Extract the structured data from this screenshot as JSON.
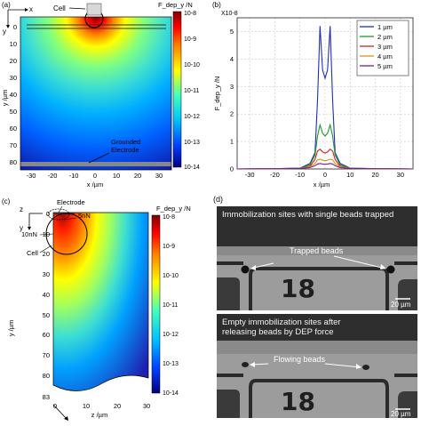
{
  "panel_a": {
    "label": "(a)",
    "axes": {
      "x": "x",
      "y": "y"
    },
    "cell_label": "Cell",
    "colorbar_title": "F_dep_y /N",
    "colorbar_ticks": [
      "10-8",
      "10-9",
      "10-10",
      "10-11",
      "10-12",
      "10-13",
      "10-14"
    ],
    "y_ticks": [
      "0",
      "10",
      "20",
      "30",
      "40",
      "50",
      "60",
      "70",
      "80"
    ],
    "x_ticks": [
      "-30",
      "-20",
      "-10",
      "0",
      "10",
      "20",
      "30"
    ],
    "ylabel": "y /µm",
    "xlabel": "x /µm",
    "grounded_label": "Grounded\nElectrode",
    "colormap": [
      "#000080",
      "#0040ff",
      "#00c0ff",
      "#40ffbf",
      "#ffff00",
      "#ff8000",
      "#ff0000",
      "#800000"
    ]
  },
  "panel_b": {
    "label": "(b)",
    "ylabel": "F_dep_y /N",
    "xlabel": "x /µm",
    "exponent": "X10-8",
    "y_ticks": [
      "0",
      "1",
      "2",
      "3",
      "4",
      "5"
    ],
    "x_ticks": [
      "-30",
      "-20",
      "-10",
      "0",
      "10",
      "20",
      "30"
    ],
    "chart_data": {
      "type": "line",
      "xlim": [
        -35,
        35
      ],
      "ylim": [
        0,
        5.5
      ],
      "grid": true,
      "legend": "top-right",
      "x": [
        -35,
        -20,
        -10,
        -6,
        -4,
        -3,
        -2,
        -1,
        0,
        1,
        2,
        3,
        4,
        6,
        10,
        20,
        35
      ],
      "series": [
        {
          "name": "1 µm",
          "color": "#1f2fb8",
          "values": [
            0,
            0.01,
            0.03,
            0.2,
            0.6,
            2.5,
            5.2,
            3.6,
            3.3,
            3.6,
            5.2,
            2.5,
            0.6,
            0.2,
            0.03,
            0.01,
            0
          ]
        },
        {
          "name": "2 µm",
          "color": "#1a9a2a",
          "values": [
            0,
            0.01,
            0.03,
            0.15,
            0.5,
            1.2,
            1.6,
            1.3,
            1.2,
            1.3,
            1.6,
            1.2,
            0.5,
            0.15,
            0.03,
            0.01,
            0
          ]
        },
        {
          "name": "3 µm",
          "color": "#d42020",
          "values": [
            0,
            0.01,
            0.02,
            0.1,
            0.35,
            0.65,
            0.72,
            0.62,
            0.58,
            0.62,
            0.72,
            0.65,
            0.35,
            0.1,
            0.02,
            0.01,
            0
          ]
        },
        {
          "name": "4 µm",
          "color": "#e09010",
          "values": [
            0,
            0.01,
            0.02,
            0.08,
            0.2,
            0.33,
            0.36,
            0.32,
            0.3,
            0.32,
            0.36,
            0.33,
            0.2,
            0.08,
            0.02,
            0.01,
            0
          ]
        },
        {
          "name": "5 µm",
          "color": "#7a1f8a",
          "values": [
            0,
            0.01,
            0.02,
            0.05,
            0.12,
            0.18,
            0.2,
            0.18,
            0.17,
            0.18,
            0.2,
            0.18,
            0.12,
            0.05,
            0.02,
            0.01,
            0
          ]
        }
      ]
    }
  },
  "panel_c": {
    "label": "(c)",
    "axes": {
      "z": "z",
      "y": "y"
    },
    "electrode_label": "Electrode",
    "force_small": "5nN",
    "force_large": "10nN",
    "cell_label": "Cell",
    "colorbar_title": "F_dep_y /N",
    "colorbar_ticks": [
      "10-8",
      "10-9",
      "10-10",
      "10-11",
      "10-12",
      "10-13",
      "10-14"
    ],
    "y_ticks": [
      "0",
      "10",
      "20",
      "30",
      "40",
      "50",
      "60",
      "70",
      "80",
      "83"
    ],
    "x_ticks": [
      "0",
      "10",
      "20",
      "30"
    ],
    "ylabel": "y /µm",
    "xlabel": "z /µm"
  },
  "panel_d": {
    "label": "(d)",
    "top_caption": "Immobilization sites with single beads trapped",
    "top_annotation": "Trapped beads",
    "bottom_caption": "Empty immobilization sites after\nreleasing beads by DEP force",
    "bottom_annotation": "Flowing beads",
    "scale_bar": "20 µm",
    "site_number": "18"
  }
}
